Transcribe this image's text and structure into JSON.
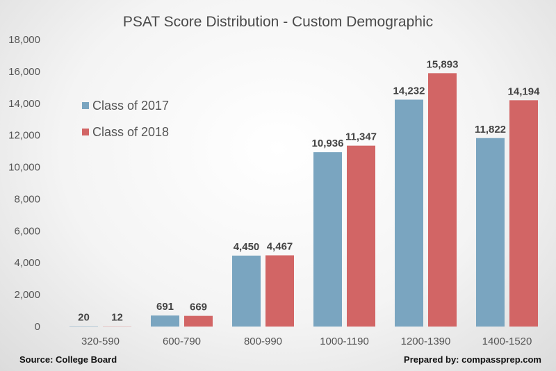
{
  "chart_data": {
    "type": "bar",
    "title": "PSAT Score Distribution - Custom Demographic",
    "categories": [
      "320-590",
      "600-790",
      "800-990",
      "1000-1190",
      "1200-1390",
      "1400-1520"
    ],
    "series": [
      {
        "name": "Class of 2017",
        "color": "#7aa5c0",
        "values": [
          20,
          691,
          4450,
          10936,
          14232,
          11822
        ],
        "labels": [
          "20",
          "691",
          "4,450",
          "10,936",
          "14,232",
          "11,822"
        ]
      },
      {
        "name": "Class of 2018",
        "color": "#d26565",
        "values": [
          12,
          669,
          4467,
          11347,
          15893,
          14194
        ],
        "labels": [
          "12",
          "669",
          "4,467",
          "11,347",
          "15,893",
          "14,194"
        ]
      }
    ],
    "ylim": [
      0,
      18000
    ],
    "yticks": [
      0,
      2000,
      4000,
      6000,
      8000,
      10000,
      12000,
      14000,
      16000,
      18000
    ],
    "ytick_labels": [
      "0",
      "2,000",
      "4,000",
      "6,000",
      "8,000",
      "10,000",
      "12,000",
      "14,000",
      "16,000",
      "18,000"
    ],
    "grid": false,
    "legend": "top-left"
  },
  "footer": {
    "source": "Source: College Board",
    "prepared": "Prepared by: compassprep.com"
  }
}
